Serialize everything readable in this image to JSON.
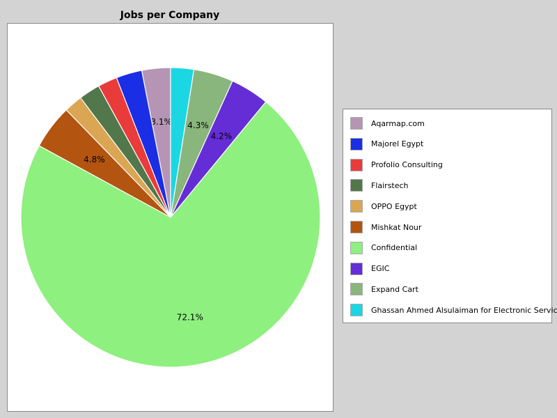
{
  "chart_data": {
    "type": "pie",
    "title": "Jobs per Company",
    "legend_position": "right",
    "slices": [
      {
        "label": "Aqarmap.com",
        "value": 3.1,
        "color": "#b695b4",
        "label_text": "3.1%"
      },
      {
        "label": "Majorel Egypt",
        "value": 2.8,
        "color": "#1a2ee6",
        "label_text": ""
      },
      {
        "label": "Profolio Consulting",
        "value": 2.1,
        "color": "#ea3b3b",
        "label_text": ""
      },
      {
        "label": "Flairstech",
        "value": 2.3,
        "color": "#52774a",
        "label_text": ""
      },
      {
        "label": "OPPO Egypt",
        "value": 2.0,
        "color": "#dba653",
        "label_text": ""
      },
      {
        "label": "Mishkat Nour",
        "value": 4.8,
        "color": "#b35410",
        "label_text": "4.8%"
      },
      {
        "label": "Confidential",
        "value": 72.1,
        "color": "#8ef07e",
        "label_text": "72.1%"
      },
      {
        "label": "EGIC",
        "value": 4.2,
        "color": "#652dd6",
        "label_text": "4.2%"
      },
      {
        "label": "Expand Cart",
        "value": 4.3,
        "color": "#89b67c",
        "label_text": "4.3%"
      },
      {
        "label": "Ghassan Ahmed Alsulaiman for Electronic Services",
        "value": 2.5,
        "color": "#1ad7e3",
        "label_text": ""
      }
    ]
  }
}
